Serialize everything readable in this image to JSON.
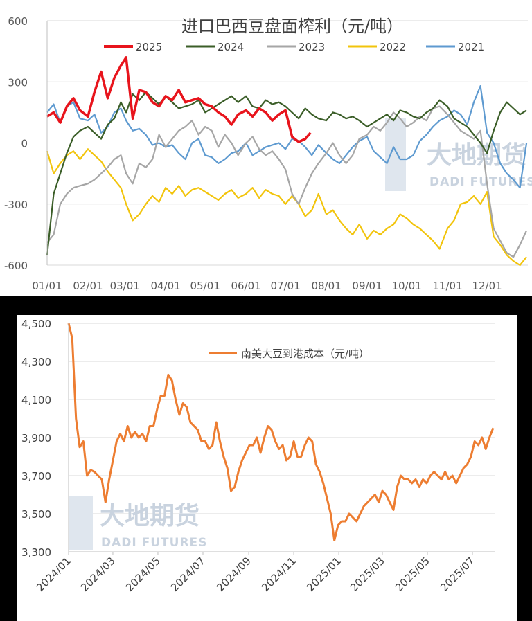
{
  "chart_data": [
    {
      "type": "line",
      "title": "进口巴西豆盘面榨利（元/吨）",
      "ylim": [
        -600,
        600
      ],
      "yticks": [
        "600",
        "300",
        "0",
        "-300",
        "-600"
      ],
      "ytick_values": [
        600,
        300,
        0,
        -300,
        -600
      ],
      "xlim": [
        0,
        365
      ],
      "xticks": [
        "01/01",
        "02/01",
        "03/01",
        "04/01",
        "05/01",
        "06/01",
        "07/01",
        "08/01",
        "09/01",
        "10/01",
        "11/01",
        "12/01"
      ],
      "xtick_days": [
        0,
        31,
        59,
        90,
        120,
        151,
        181,
        212,
        243,
        273,
        304,
        334
      ],
      "grid": "horizontal",
      "legend": "top",
      "watermark": {
        "cn": "大地期货",
        "en": "DADI FUTURES"
      },
      "series": [
        {
          "name": "2025",
          "color": "#e8141c",
          "x": [
            0,
            5,
            10,
            15,
            20,
            25,
            31,
            36,
            41,
            46,
            51,
            56,
            60,
            65,
            70,
            75,
            80,
            85,
            90,
            95,
            100,
            105,
            110,
            115,
            120,
            125,
            130,
            135,
            140,
            145,
            151,
            156,
            161,
            166,
            171,
            176,
            181,
            186,
            191,
            196,
            200
          ],
          "y": [
            130,
            150,
            100,
            180,
            220,
            160,
            130,
            250,
            350,
            220,
            320,
            380,
            420,
            120,
            260,
            250,
            200,
            180,
            230,
            210,
            260,
            200,
            210,
            220,
            190,
            180,
            150,
            130,
            90,
            140,
            160,
            130,
            170,
            150,
            110,
            140,
            160,
            30,
            5,
            20,
            50
          ]
        },
        {
          "name": "2024",
          "color": "#3b5e28",
          "x": [
            0,
            5,
            10,
            15,
            20,
            25,
            31,
            36,
            41,
            46,
            51,
            56,
            60,
            65,
            70,
            75,
            80,
            85,
            90,
            95,
            100,
            105,
            110,
            115,
            120,
            125,
            130,
            135,
            140,
            145,
            151,
            156,
            161,
            166,
            171,
            176,
            181,
            186,
            191,
            196,
            201,
            206,
            212,
            217,
            222,
            227,
            232,
            237,
            243,
            248,
            253,
            258,
            263,
            268,
            273,
            278,
            283,
            288,
            293,
            298,
            304,
            309,
            314,
            319,
            324,
            329,
            334,
            339,
            344,
            349,
            354,
            359,
            364
          ],
          "y": [
            -550,
            -250,
            -150,
            -50,
            30,
            60,
            80,
            50,
            20,
            90,
            120,
            200,
            150,
            240,
            210,
            250,
            220,
            190,
            230,
            200,
            170,
            180,
            190,
            210,
            150,
            170,
            190,
            210,
            230,
            200,
            230,
            180,
            170,
            210,
            190,
            200,
            180,
            150,
            120,
            170,
            140,
            120,
            110,
            150,
            140,
            120,
            130,
            110,
            80,
            100,
            120,
            140,
            110,
            160,
            150,
            130,
            120,
            150,
            170,
            210,
            180,
            120,
            100,
            80,
            40,
            0,
            -50,
            60,
            150,
            200,
            170,
            140,
            160
          ]
        },
        {
          "name": "2023",
          "color": "#a6a6a6",
          "x": [
            0,
            5,
            10,
            15,
            20,
            25,
            31,
            36,
            41,
            46,
            51,
            56,
            60,
            65,
            70,
            75,
            80,
            85,
            90,
            95,
            100,
            105,
            110,
            115,
            120,
            125,
            130,
            135,
            140,
            145,
            151,
            156,
            161,
            166,
            171,
            176,
            181,
            186,
            191,
            196,
            201,
            206,
            212,
            217,
            222,
            227,
            232,
            237,
            243,
            248,
            253,
            258,
            263,
            268,
            273,
            278,
            283,
            288,
            293,
            298,
            304,
            309,
            314,
            319,
            324,
            329,
            334,
            339,
            344,
            349,
            354,
            359,
            364
          ],
          "y": [
            -490,
            -450,
            -300,
            -250,
            -220,
            -210,
            -200,
            -180,
            -150,
            -120,
            -80,
            -60,
            -150,
            -200,
            -100,
            -120,
            -80,
            40,
            -20,
            20,
            60,
            80,
            110,
            40,
            80,
            60,
            -20,
            40,
            0,
            -60,
            0,
            30,
            -30,
            -60,
            -40,
            -80,
            -130,
            -250,
            -300,
            -220,
            -150,
            -100,
            -50,
            0,
            -60,
            -100,
            -60,
            20,
            40,
            80,
            60,
            100,
            150,
            120,
            80,
            100,
            130,
            110,
            170,
            180,
            140,
            100,
            60,
            40,
            20,
            60,
            -200,
            -420,
            -480,
            -540,
            -560,
            -500,
            -430
          ]
        },
        {
          "name": "2022",
          "color": "#f2c40c",
          "x": [
            0,
            5,
            10,
            15,
            20,
            25,
            31,
            36,
            41,
            46,
            51,
            56,
            60,
            65,
            70,
            75,
            80,
            85,
            90,
            95,
            100,
            105,
            110,
            115,
            120,
            125,
            130,
            135,
            140,
            145,
            151,
            156,
            161,
            166,
            171,
            176,
            181,
            186,
            191,
            196,
            201,
            206,
            212,
            217,
            222,
            227,
            232,
            237,
            243,
            248,
            253,
            258,
            263,
            268,
            273,
            278,
            283,
            288,
            293,
            298,
            304,
            309,
            314,
            319,
            324,
            329,
            334,
            339,
            344,
            349,
            354,
            359,
            364
          ],
          "y": [
            -40,
            -150,
            -100,
            -60,
            -40,
            -80,
            -30,
            -60,
            -90,
            -140,
            -180,
            -220,
            -300,
            -380,
            -350,
            -300,
            -260,
            -290,
            -220,
            -250,
            -210,
            -260,
            -230,
            -220,
            -240,
            -260,
            -280,
            -250,
            -230,
            -270,
            -250,
            -220,
            -270,
            -230,
            -250,
            -260,
            -300,
            -260,
            -300,
            -360,
            -330,
            -250,
            -350,
            -330,
            -380,
            -420,
            -450,
            -400,
            -470,
            -430,
            -450,
            -420,
            -400,
            -350,
            -370,
            -400,
            -420,
            -450,
            -480,
            -520,
            -420,
            -380,
            -300,
            -290,
            -260,
            -300,
            -240,
            -460,
            -500,
            -550,
            -580,
            -600,
            -560
          ]
        },
        {
          "name": "2021",
          "color": "#5e9ad0",
          "x": [
            0,
            5,
            10,
            15,
            20,
            25,
            31,
            36,
            41,
            46,
            51,
            56,
            60,
            65,
            70,
            75,
            80,
            85,
            90,
            95,
            100,
            105,
            110,
            115,
            120,
            125,
            130,
            135,
            140,
            145,
            151,
            156,
            161,
            166,
            171,
            176,
            181,
            186,
            191,
            196,
            201,
            206,
            212,
            217,
            222,
            227,
            232,
            237,
            243,
            248,
            253,
            258,
            263,
            268,
            273,
            278,
            283,
            288,
            293,
            298,
            304,
            309,
            314,
            319,
            324,
            329,
            334,
            339,
            344,
            349,
            354,
            359,
            364
          ],
          "y": [
            150,
            190,
            100,
            180,
            200,
            120,
            110,
            140,
            50,
            80,
            150,
            170,
            110,
            60,
            70,
            40,
            -10,
            0,
            -20,
            -10,
            -50,
            -80,
            0,
            20,
            -60,
            -70,
            -100,
            -80,
            -50,
            -40,
            0,
            -60,
            -40,
            -20,
            -10,
            0,
            -30,
            20,
            10,
            -20,
            -60,
            -10,
            -50,
            -80,
            -100,
            -60,
            -20,
            10,
            30,
            -40,
            -70,
            -100,
            -20,
            -80,
            -80,
            -60,
            10,
            40,
            80,
            110,
            130,
            160,
            140,
            90,
            200,
            280,
            50,
            0,
            -100,
            -150,
            -180,
            -220,
            0
          ]
        }
      ]
    },
    {
      "type": "line",
      "title": "",
      "ylim": [
        3300,
        4500
      ],
      "yticks": [
        "4,500",
        "4,300",
        "4,100",
        "3,900",
        "3,700",
        "3,500",
        "3,300"
      ],
      "ytick_values": [
        4500,
        4300,
        4100,
        3900,
        3700,
        3500,
        3300
      ],
      "xlim": [
        0,
        577
      ],
      "xticks": [
        "2024/01",
        "2024/03",
        "2024/05",
        "2024/07",
        "2024/09",
        "2024/11",
        "2025/01",
        "2025/03",
        "2025/05",
        "2025/07"
      ],
      "xtick_days": [
        0,
        60,
        121,
        182,
        244,
        305,
        366,
        425,
        486,
        547
      ],
      "grid": "horizontal",
      "legend": "top",
      "watermark": {
        "cn": "大地期货",
        "en": "DADI FUTURES"
      },
      "series": [
        {
          "name": "南美大豆到港成本（元/吨）",
          "color": "#ed7d31",
          "x": [
            0,
            5,
            10,
            15,
            20,
            25,
            30,
            35,
            40,
            45,
            50,
            55,
            60,
            65,
            70,
            75,
            80,
            85,
            90,
            95,
            100,
            105,
            110,
            115,
            120,
            125,
            130,
            135,
            140,
            145,
            150,
            155,
            160,
            165,
            170,
            175,
            180,
            185,
            190,
            195,
            200,
            205,
            210,
            215,
            220,
            225,
            230,
            235,
            240,
            245,
            250,
            255,
            260,
            265,
            270,
            275,
            280,
            285,
            290,
            295,
            300,
            305,
            310,
            315,
            320,
            325,
            330,
            335,
            340,
            345,
            350,
            355,
            360,
            365,
            370,
            375,
            380,
            385,
            390,
            395,
            400,
            405,
            410,
            415,
            420,
            425,
            430,
            435,
            440,
            445,
            450,
            455,
            460,
            465,
            470,
            475,
            480,
            485,
            490,
            495,
            500,
            505,
            510,
            515,
            520,
            525,
            530,
            535,
            540,
            545,
            550,
            555,
            560,
            565,
            570,
            575
          ],
          "y": [
            4500,
            4420,
            4000,
            3850,
            3880,
            3700,
            3730,
            3720,
            3700,
            3680,
            3560,
            3680,
            3780,
            3880,
            3920,
            3880,
            3960,
            3900,
            3930,
            3900,
            3920,
            3880,
            3960,
            3960,
            4050,
            4120,
            4120,
            4230,
            4200,
            4100,
            4020,
            4080,
            4060,
            3980,
            3960,
            3940,
            3880,
            3880,
            3840,
            3860,
            3980,
            3880,
            3800,
            3740,
            3620,
            3640,
            3720,
            3780,
            3820,
            3860,
            3860,
            3900,
            3820,
            3900,
            3960,
            3940,
            3880,
            3840,
            3860,
            3780,
            3800,
            3880,
            3800,
            3800,
            3860,
            3900,
            3880,
            3760,
            3720,
            3660,
            3580,
            3500,
            3360,
            3440,
            3460,
            3460,
            3500,
            3480,
            3460,
            3500,
            3540,
            3560,
            3580,
            3600,
            3560,
            3620,
            3600,
            3560,
            3520,
            3640,
            3700,
            3680,
            3680,
            3660,
            3680,
            3640,
            3680,
            3660,
            3700,
            3720,
            3700,
            3680,
            3720,
            3680,
            3700,
            3660,
            3700,
            3740,
            3760,
            3800,
            3880,
            3860,
            3900,
            3840,
            3900,
            3950
          ]
        }
      ]
    }
  ]
}
